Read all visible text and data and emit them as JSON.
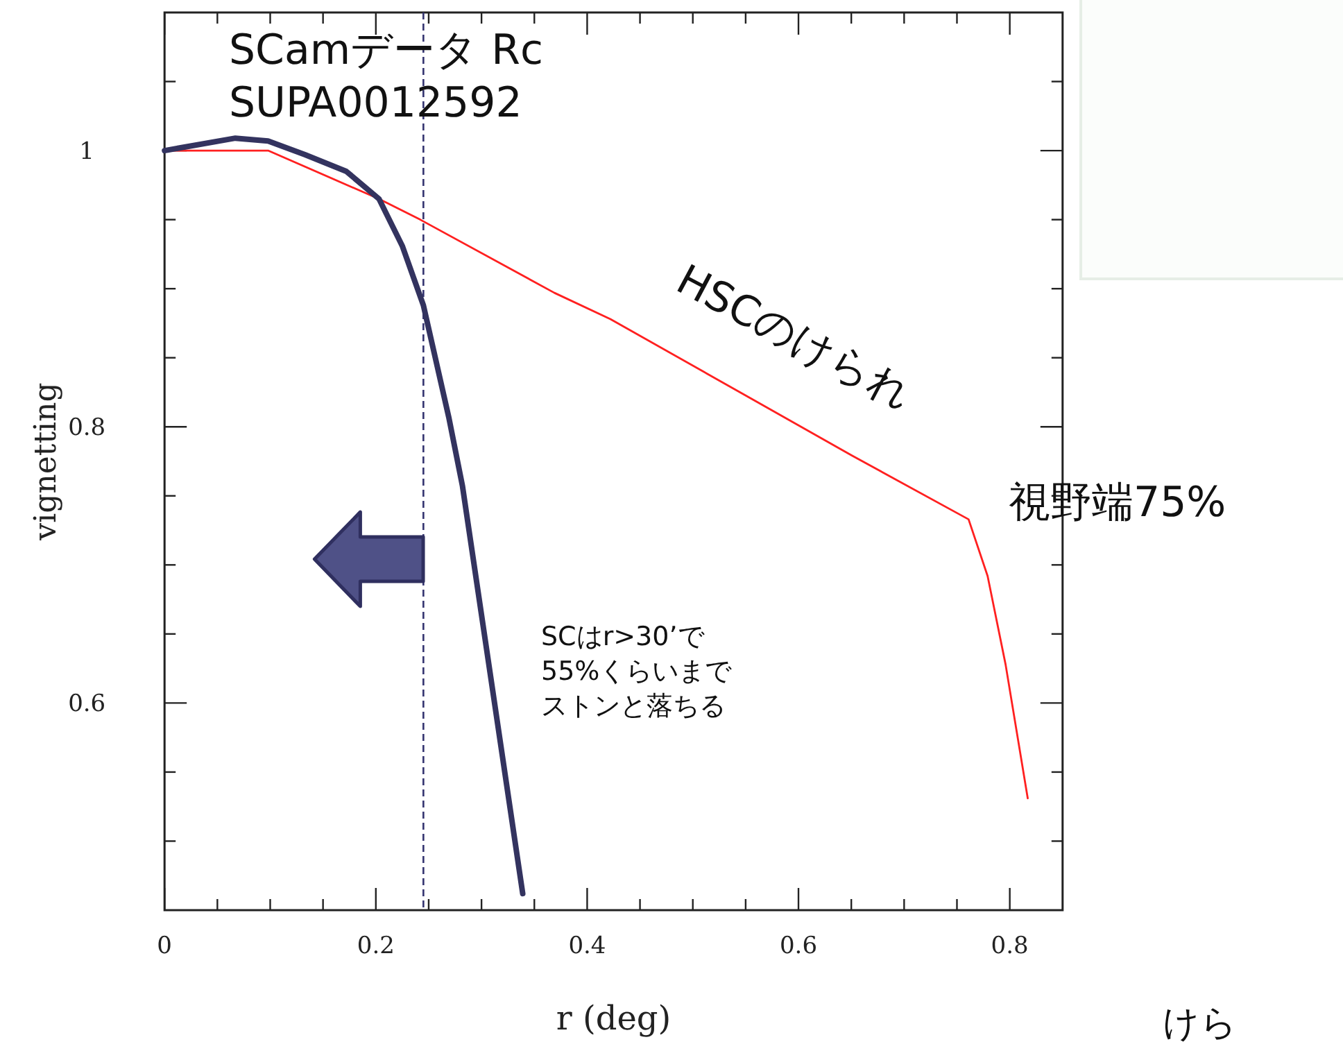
{
  "chart_data": {
    "type": "line",
    "xlabel": "r (deg)",
    "ylabel": "vignetting",
    "xlim": [
      0,
      0.85
    ],
    "ylim": [
      0.45,
      1.1
    ],
    "xticks": [
      0,
      {
        "value": 0.05,
        "label": null
      },
      {
        "value": 0.1,
        "label": null
      },
      {
        "value": 0.15,
        "label": null
      },
      {
        "value": 0.2,
        "label": "0.2"
      },
      {
        "value": 0.25,
        "label": null
      },
      {
        "value": 0.3,
        "label": null
      },
      {
        "value": 0.35,
        "label": null
      },
      {
        "value": 0.4,
        "label": "0.4"
      },
      {
        "value": 0.45,
        "label": null
      },
      {
        "value": 0.5,
        "label": null
      },
      {
        "value": 0.55,
        "label": null
      },
      {
        "value": 0.6,
        "label": "0.6"
      },
      {
        "value": 0.65,
        "label": null
      },
      {
        "value": 0.7,
        "label": null
      },
      {
        "value": 0.75,
        "label": null
      },
      {
        "value": 0.8,
        "label": "0.8"
      }
    ],
    "yticks": [
      {
        "value": 0.5,
        "label": null
      },
      {
        "value": 0.55,
        "label": null
      },
      {
        "value": 0.6,
        "label": "0.6"
      },
      {
        "value": 0.65,
        "label": null
      },
      {
        "value": 0.7,
        "label": null
      },
      {
        "value": 0.75,
        "label": null
      },
      {
        "value": 0.8,
        "label": "0.8"
      },
      {
        "value": 0.85,
        "label": null
      },
      {
        "value": 0.9,
        "label": null
      },
      {
        "value": 0.95,
        "label": null
      },
      1,
      {
        "value": 1.05,
        "label": null
      }
    ],
    "series": [
      {
        "color": "#ff2020",
        "x": [
          0,
          0.098,
          0.203,
          0.242,
          0.369,
          0.422,
          0.547,
          0.651,
          0.761,
          0.779,
          0.796,
          0.817
        ],
        "values": [
          1,
          1,
          0.965,
          0.95,
          0.897,
          0.878,
          0.824,
          0.779,
          0.733,
          0.692,
          0.628,
          0.531
        ]
      },
      {
        "color": "#33335f",
        "x": [
          0,
          0.067,
          0.098,
          0.133,
          0.172,
          0.203,
          0.225,
          0.245,
          0.269,
          0.282,
          0.339
        ],
        "values": [
          1,
          1.009,
          1.007,
          0.997,
          0.985,
          0.965,
          0.931,
          0.888,
          0.807,
          0.757,
          0.462
        ]
      }
    ],
    "ref_lines": [
      {
        "axis": "x",
        "value": 0.245,
        "color": "#33336f",
        "line_style": "dashed"
      }
    ],
    "annotations": [
      "SCamデータ Rc",
      "SUPA0012592",
      "HSCのけられ",
      "視野端75%",
      "SCはr>30’で",
      "55%くらいまで",
      "ストンと落ちる",
      "けら"
    ]
  }
}
